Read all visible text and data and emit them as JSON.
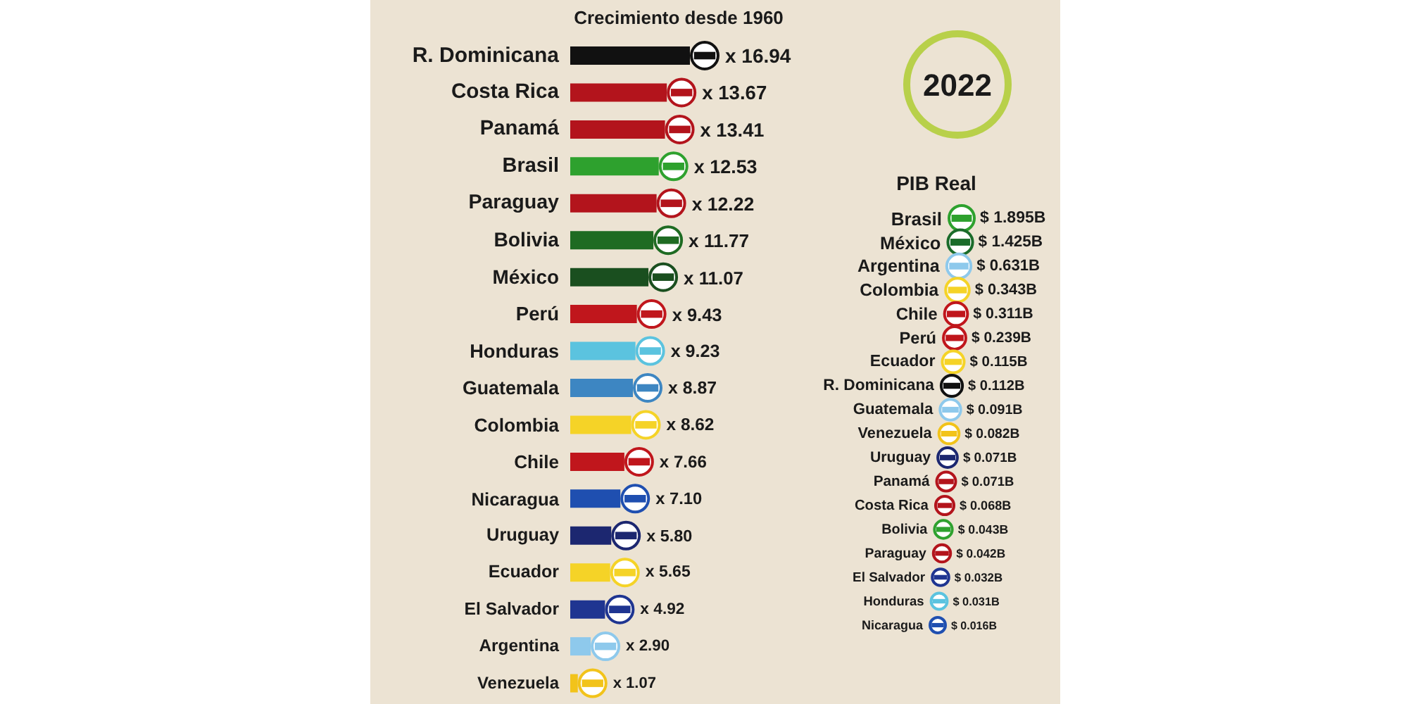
{
  "chart_data": [
    {
      "type": "bar",
      "orientation": "horizontal",
      "title": "Crecimiento desde 1960",
      "categories": [
        "R. Dominicana",
        "Costa Rica",
        "Panamá",
        "Brasil",
        "Paraguay",
        "Bolivia",
        "México",
        "Perú",
        "Honduras",
        "Guatemala",
        "Colombia",
        "Chile",
        "Nicaragua",
        "Uruguay",
        "Ecuador",
        "El Salvador",
        "Argentina",
        "Venezuela"
      ],
      "values": [
        16.94,
        13.67,
        13.41,
        12.53,
        12.22,
        11.77,
        11.07,
        9.43,
        9.23,
        8.87,
        8.62,
        7.66,
        7.1,
        5.8,
        5.65,
        4.92,
        2.9,
        1.07
      ],
      "value_labels": [
        "x 16.94",
        "x 13.67",
        "x 13.41",
        "x 12.53",
        "x 12.22",
        "x 11.77",
        "x 11.07",
        "x 9.43",
        "x 9.23",
        "x 8.87",
        "x 8.62",
        "x 7.66",
        "x 7.10",
        "x 5.80",
        "x 5.65",
        "x 4.92",
        "x 2.90",
        "x 1.07"
      ],
      "colors": [
        "#111111",
        "#b3141c",
        "#b3141c",
        "#2ea12e",
        "#b3141c",
        "#1e6b22",
        "#1a4f1f",
        "#c0161c",
        "#5bc3df",
        "#3d86c2",
        "#f5d327",
        "#c0161c",
        "#1f4fb0",
        "#1c2770",
        "#f5d327",
        "#1f3591",
        "#8ec9ec",
        "#f2c31a"
      ]
    },
    {
      "type": "other",
      "title": "PIB Real",
      "annotations": [
        "2022"
      ],
      "categories": [
        "Brasil",
        "México",
        "Argentina",
        "Colombia",
        "Chile",
        "Perú",
        "Ecuador",
        "R. Dominicana",
        "Guatemala",
        "Venezuela",
        "Uruguay",
        "Panamá",
        "Costa Rica",
        "Bolivia",
        "Paraguay",
        "El Salvador",
        "Honduras",
        "Nicaragua"
      ],
      "value_labels": [
        "$ 1.895B",
        "$ 1.425B",
        "$ 0.631B",
        "$ 0.343B",
        "$ 0.311B",
        "$ 0.239B",
        "$ 0.115B",
        "$ 0.112B",
        "$ 0.091B",
        "$ 0.082B",
        "$ 0.071B",
        "$ 0.071B",
        "$ 0.068B",
        "$ 0.043B",
        "$ 0.042B",
        "$ 0.032B",
        "$ 0.031B",
        "$ 0.016B"
      ],
      "colors": [
        "#2ea12e",
        "#1a6b2a",
        "#8ec9ec",
        "#f5d327",
        "#c0161c",
        "#c0161c",
        "#f5d327",
        "#111111",
        "#8ec9ec",
        "#f2c31a",
        "#1c2770",
        "#b3141c",
        "#b3141c",
        "#2ea12e",
        "#b3141c",
        "#1f3591",
        "#5bc3df",
        "#1f4fb0"
      ]
    }
  ]
}
